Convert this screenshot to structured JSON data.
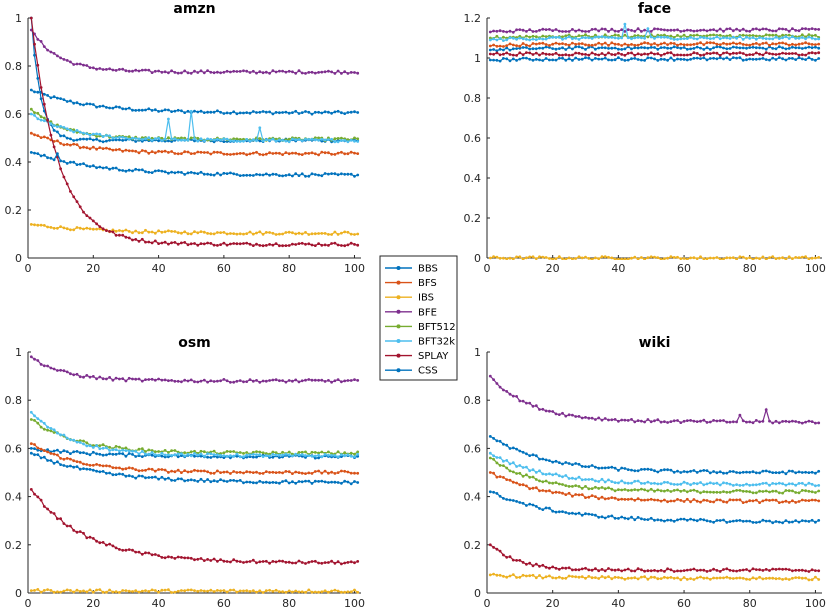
{
  "chart_data": {
    "type": "line",
    "legend": {
      "placement": "center",
      "entries": [
        "BBS",
        "BFS",
        "IBS",
        "BFE",
        "BFT512",
        "BFT32k",
        "SPLAY",
        "CSS"
      ]
    },
    "series_colors": {
      "BBS": "#0072BD",
      "BFS": "#D95319",
      "IBS": "#EDB120",
      "BFE": "#7E2F8E",
      "BFT512": "#77AC30",
      "BFT32k": "#4DBEEE",
      "SPLAY": "#A2142F",
      "CSS": "#0072BD"
    },
    "subplots": [
      {
        "title": "amzn",
        "xlim": [
          0,
          102
        ],
        "ylim": [
          0,
          1
        ],
        "xticks": [
          "0",
          "20",
          "40",
          "60",
          "80",
          "100"
        ],
        "yticks": [
          "0",
          "0.2",
          "0.4",
          "0.6",
          "0.8",
          "1"
        ],
        "grid": false,
        "curves": {
          "BBS": {
            "start": 1.0,
            "end": 0.49,
            "rate": 0.35
          },
          "BFS": {
            "start": 0.52,
            "end": 0.435,
            "rate": 0.07
          },
          "IBS": {
            "start": 0.14,
            "end": 0.103,
            "rate": 0.05
          },
          "BFE": {
            "start": 0.95,
            "end": 0.775,
            "rate": 0.12
          },
          "BFT512": {
            "start": 0.62,
            "end": 0.495,
            "rate": 0.1
          },
          "BFT32k": {
            "start": 0.6,
            "end": 0.49,
            "rate": 0.08
          },
          "SPLAY": {
            "start": 1.0,
            "end": 0.057,
            "rate": 0.12
          },
          "CSS": {
            "start": 0.44,
            "end": 0.345,
            "rate": 0.05
          }
        },
        "special": {
          "BBS_second": {
            "start": 0.7,
            "end": 0.605,
            "rate": 0.06
          }
        }
      },
      {
        "title": "face",
        "xlim": [
          0,
          102
        ],
        "ylim": [
          0,
          1.2
        ],
        "xticks": [
          "0",
          "20",
          "40",
          "60",
          "80",
          "100"
        ],
        "yticks": [
          "0",
          "0.2",
          "0.4",
          "0.6",
          "0.8",
          "1",
          "1.2"
        ],
        "grid": false,
        "curves": {
          "BBS": {
            "start": 1.04,
            "end": 1.05,
            "rate": 0.1
          },
          "BFS": {
            "start": 1.06,
            "end": 1.07,
            "rate": 0.1
          },
          "IBS": {
            "start": 0.0,
            "end": 0.0,
            "rate": 0.1
          },
          "BFE": {
            "start": 1.13,
            "end": 1.14,
            "rate": 0.1
          },
          "BFT512": {
            "start": 1.1,
            "end": 1.11,
            "rate": 0.1
          },
          "BFT32k": {
            "start": 1.09,
            "end": 1.1,
            "rate": 0.1
          },
          "SPLAY": {
            "start": 1.02,
            "end": 1.02,
            "rate": 0.1
          },
          "CSS": {
            "start": 0.99,
            "end": 0.995,
            "rate": 0.1
          }
        }
      },
      {
        "title": "osm",
        "xlim": [
          0,
          102
        ],
        "ylim": [
          0,
          1
        ],
        "xticks": [
          "0",
          "20",
          "40",
          "60",
          "80",
          "100"
        ],
        "yticks": [
          "0",
          "0.2",
          "0.4",
          "0.6",
          "0.8",
          "1"
        ],
        "grid": false,
        "curves": {
          "BBS": {
            "start": 0.6,
            "end": 0.565,
            "rate": 0.05
          },
          "BFS": {
            "start": 0.62,
            "end": 0.5,
            "rate": 0.07
          },
          "IBS": {
            "start": 0.01,
            "end": 0.008,
            "rate": 0.1
          },
          "BFE": {
            "start": 0.98,
            "end": 0.88,
            "rate": 0.1
          },
          "BFT512": {
            "start": 0.72,
            "end": 0.58,
            "rate": 0.07
          },
          "BFT32k": {
            "start": 0.75,
            "end": 0.57,
            "rate": 0.08
          },
          "SPLAY": {
            "start": 0.43,
            "end": 0.125,
            "rate": 0.06
          },
          "CSS": {
            "start": 0.58,
            "end": 0.458,
            "rate": 0.05
          }
        }
      },
      {
        "title": "wiki",
        "xlim": [
          0,
          102
        ],
        "ylim": [
          0,
          1
        ],
        "xticks": [
          "0",
          "20",
          "40",
          "60",
          "80",
          "100"
        ],
        "yticks": [
          "0",
          "0.2",
          "0.4",
          "0.6",
          "0.8",
          "1"
        ],
        "grid": false,
        "curves": {
          "BBS": {
            "start": 0.65,
            "end": 0.5,
            "rate": 0.06
          },
          "BFS": {
            "start": 0.5,
            "end": 0.38,
            "rate": 0.06
          },
          "IBS": {
            "start": 0.075,
            "end": 0.06,
            "rate": 0.05
          },
          "BFE": {
            "start": 0.9,
            "end": 0.71,
            "rate": 0.08
          },
          "BFT512": {
            "start": 0.56,
            "end": 0.42,
            "rate": 0.07
          },
          "BFT32k": {
            "start": 0.58,
            "end": 0.45,
            "rate": 0.06
          },
          "SPLAY": {
            "start": 0.2,
            "end": 0.095,
            "rate": 0.12
          },
          "CSS": {
            "start": 0.42,
            "end": 0.295,
            "rate": 0.05
          }
        }
      }
    ]
  }
}
